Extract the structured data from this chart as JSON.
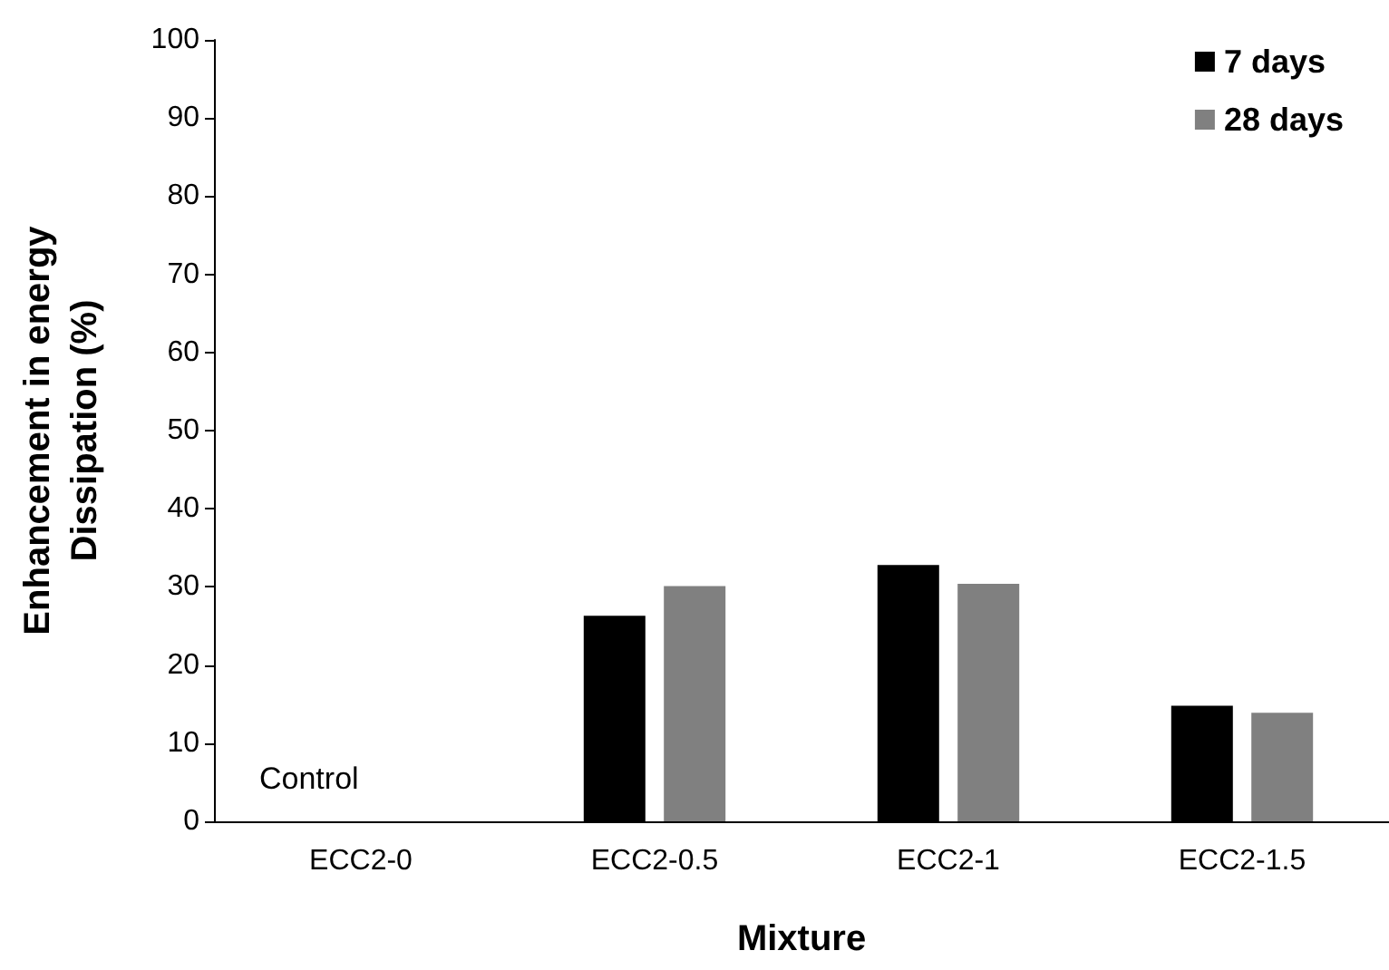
{
  "chart_data": {
    "type": "bar",
    "xlabel": "Mixture",
    "ylabel": "Enhancement in energy Dissipation (%)",
    "categories": [
      "ECC2-0",
      "ECC2-0.5",
      "ECC2-1",
      "ECC2-1.5"
    ],
    "series": [
      {
        "name": "7 days",
        "color": "#000000",
        "values": [
          0,
          26.3,
          32.8,
          14.8
        ]
      },
      {
        "name": "28 days",
        "color": "#808080",
        "values": [
          0,
          30.1,
          30.4,
          13.9
        ]
      }
    ],
    "annotations": [
      "Control"
    ],
    "ylim": [
      0,
      100
    ],
    "yticks": [
      0,
      10,
      20,
      30,
      40,
      50,
      60,
      70,
      80,
      90,
      100
    ],
    "grid": false,
    "legend": "top right"
  }
}
